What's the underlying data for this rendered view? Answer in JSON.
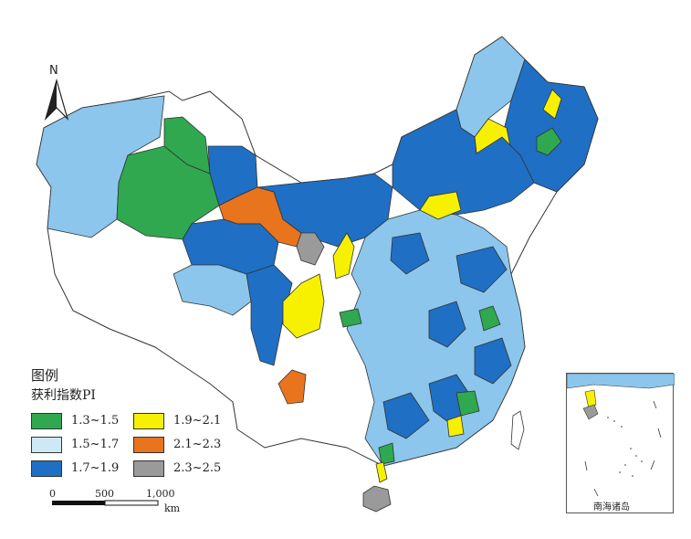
{
  "legend": {
    "title": "图例",
    "subtitle": "获利指数PI",
    "items": [
      {
        "label": "1.3~1.5",
        "color": "#2fa84f"
      },
      {
        "label": "1.9~2.1",
        "color": "#f7f100"
      },
      {
        "label": "1.5~1.7",
        "color": "#cfe8f6"
      },
      {
        "label": "2.1~2.3",
        "color": "#e8741e"
      },
      {
        "label": "1.7~1.9",
        "color": "#1f6fc4"
      },
      {
        "label": "2.3~2.5",
        "color": "#9a9a9a"
      }
    ]
  },
  "scale_bar": {
    "ticks": [
      "0",
      "500",
      "1,000"
    ],
    "unit": "km"
  },
  "north_arrow": {
    "label": "N"
  },
  "inset": {
    "label": "南海诸岛"
  },
  "colors": {
    "no_data": "#ffffff",
    "mid_blue": "#1f6fc4",
    "light_blue": "#8cc6ec",
    "border": "#333333"
  }
}
